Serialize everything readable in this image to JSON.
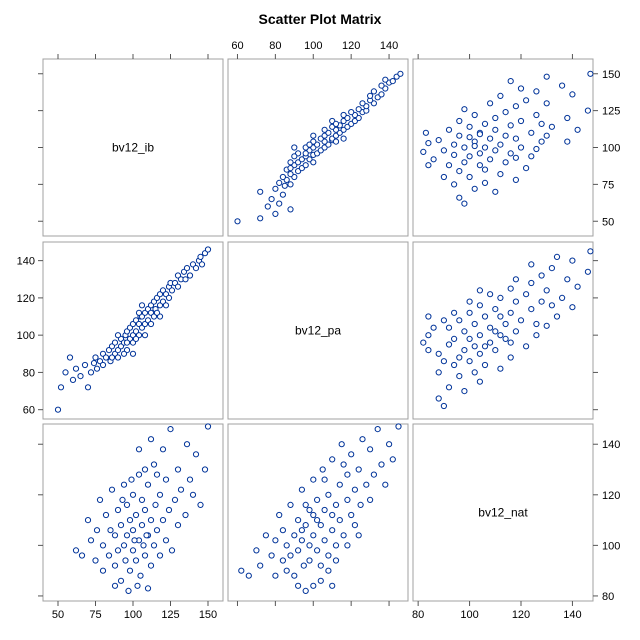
{
  "page": {
    "background": "#ffffff",
    "title": "Scatter Plot Matrix"
  },
  "colors": {
    "marker": "#003399",
    "frame": "#a0a0a0"
  },
  "chart_data": {
    "type": "scatter",
    "title": "Scatter Plot Matrix",
    "variables": [
      {
        "name": "bv12_ib",
        "range": [
          40,
          160
        ],
        "ticks": [
          50,
          75,
          100,
          125,
          150
        ]
      },
      {
        "name": "bv12_pa",
        "range": [
          55,
          150
        ],
        "ticks": [
          60,
          80,
          100,
          120,
          140
        ]
      },
      {
        "name": "bv12_nat",
        "range": [
          78,
          148
        ],
        "ticks": [
          80,
          100,
          120,
          140
        ]
      }
    ],
    "axis_label_sides": {
      "top": {
        "column": 1,
        "ticks": [
          60,
          80,
          100,
          120,
          140
        ]
      },
      "right_row0": {
        "row": 0,
        "ticks": [
          50,
          75,
          100,
          125,
          150
        ]
      },
      "left": {
        "row": 1,
        "ticks": [
          60,
          80,
          100,
          120,
          140
        ]
      },
      "right_row2": {
        "row": 2,
        "ticks": [
          80,
          100,
          120,
          140
        ]
      },
      "bottom_col0": {
        "column": 0,
        "ticks": [
          50,
          75,
          100,
          125,
          150
        ]
      },
      "bottom_col2": {
        "column": 2,
        "ticks": [
          80,
          100,
          120,
          140
        ]
      }
    },
    "marker": {
      "shape": "open-circle",
      "color": "#003399"
    },
    "series": [
      {
        "pair": [
          "bv12_ib",
          "bv12_pa"
        ],
        "points": [
          [
            50,
            60
          ],
          [
            52,
            72
          ],
          [
            55,
            80
          ],
          [
            58,
            88
          ],
          [
            60,
            76
          ],
          [
            62,
            82
          ],
          [
            65,
            78
          ],
          [
            68,
            84
          ],
          [
            70,
            72
          ],
          [
            72,
            80
          ],
          [
            74,
            85
          ],
          [
            75,
            88
          ],
          [
            76,
            82
          ],
          [
            78,
            86
          ],
          [
            80,
            90
          ],
          [
            80,
            84
          ],
          [
            82,
            88
          ],
          [
            84,
            92
          ],
          [
            85,
            86
          ],
          [
            86,
            94
          ],
          [
            88,
            90
          ],
          [
            88,
            96
          ],
          [
            90,
            92
          ],
          [
            90,
            88
          ],
          [
            92,
            98
          ],
          [
            92,
            94
          ],
          [
            94,
            96
          ],
          [
            95,
            100
          ],
          [
            96,
            92
          ],
          [
            96,
            102
          ],
          [
            98,
            98
          ],
          [
            98,
            104
          ],
          [
            100,
            100
          ],
          [
            100,
            96
          ],
          [
            100,
            106
          ],
          [
            102,
            102
          ],
          [
            102,
            108
          ],
          [
            104,
            100
          ],
          [
            104,
            106
          ],
          [
            105,
            110
          ],
          [
            106,
            104
          ],
          [
            106,
            110
          ],
          [
            108,
            106
          ],
          [
            108,
            112
          ],
          [
            110,
            108
          ],
          [
            110,
            114
          ],
          [
            112,
            112
          ],
          [
            112,
            116
          ],
          [
            114,
            110
          ],
          [
            114,
            118
          ],
          [
            115,
            114
          ],
          [
            116,
            120
          ],
          [
            118,
            116
          ],
          [
            118,
            122
          ],
          [
            120,
            118
          ],
          [
            120,
            124
          ],
          [
            122,
            122
          ],
          [
            124,
            120
          ],
          [
            124,
            126
          ],
          [
            125,
            128
          ],
          [
            126,
            124
          ],
          [
            128,
            128
          ],
          [
            130,
            126
          ],
          [
            130,
            132
          ],
          [
            132,
            130
          ],
          [
            134,
            134
          ],
          [
            135,
            130
          ],
          [
            136,
            136
          ],
          [
            138,
            132
          ],
          [
            140,
            138
          ],
          [
            142,
            136
          ],
          [
            144,
            140
          ],
          [
            145,
            142
          ],
          [
            146,
            138
          ],
          [
            148,
            144
          ],
          [
            150,
            146
          ],
          [
            152,
            150
          ],
          [
            108,
            100
          ],
          [
            96,
            96
          ],
          [
            104,
            112
          ],
          [
            100,
            90
          ],
          [
            90,
            100
          ],
          [
            112,
            106
          ],
          [
            86,
            88
          ],
          [
            118,
            110
          ],
          [
            122,
            116
          ],
          [
            94,
            90
          ],
          [
            102,
            98
          ],
          [
            106,
            116
          ],
          [
            116,
            112
          ]
        ]
      },
      {
        "pair": [
          "bv12_ib",
          "bv12_nat"
        ],
        "points": [
          [
            62,
            98
          ],
          [
            66,
            96
          ],
          [
            70,
            110
          ],
          [
            72,
            102
          ],
          [
            75,
            94
          ],
          [
            76,
            106
          ],
          [
            78,
            118
          ],
          [
            80,
            90
          ],
          [
            80,
            100
          ],
          [
            82,
            112
          ],
          [
            84,
            96
          ],
          [
            85,
            106
          ],
          [
            86,
            122
          ],
          [
            88,
            92
          ],
          [
            88,
            104
          ],
          [
            90,
            98
          ],
          [
            90,
            114
          ],
          [
            92,
            86
          ],
          [
            92,
            108
          ],
          [
            94,
            100
          ],
          [
            94,
            124
          ],
          [
            95,
            94
          ],
          [
            96,
            104
          ],
          [
            96,
            116
          ],
          [
            98,
            90
          ],
          [
            98,
            110
          ],
          [
            100,
            98
          ],
          [
            100,
            106
          ],
          [
            100,
            120
          ],
          [
            102,
            94
          ],
          [
            102,
            112
          ],
          [
            104,
            102
          ],
          [
            104,
            128
          ],
          [
            105,
            88
          ],
          [
            106,
            108
          ],
          [
            106,
            118
          ],
          [
            108,
            96
          ],
          [
            108,
            114
          ],
          [
            110,
            104
          ],
          [
            110,
            124
          ],
          [
            112,
            92
          ],
          [
            112,
            110
          ],
          [
            114,
            100
          ],
          [
            114,
            132
          ],
          [
            115,
            116
          ],
          [
            116,
            106
          ],
          [
            118,
            96
          ],
          [
            118,
            120
          ],
          [
            120,
            110
          ],
          [
            120,
            138
          ],
          [
            122,
            102
          ],
          [
            122,
            126
          ],
          [
            124,
            114
          ],
          [
            125,
            146
          ],
          [
            126,
            98
          ],
          [
            128,
            118
          ],
          [
            130,
            108
          ],
          [
            130,
            130
          ],
          [
            132,
            122
          ],
          [
            135,
            112
          ],
          [
            136,
            140
          ],
          [
            138,
            126
          ],
          [
            140,
            120
          ],
          [
            142,
            136
          ],
          [
            145,
            116
          ],
          [
            148,
            130
          ],
          [
            150,
            147
          ],
          [
            103,
            84
          ],
          [
            97,
            82
          ],
          [
            110,
            83
          ],
          [
            88,
            84
          ],
          [
            108,
            130
          ],
          [
            112,
            142
          ],
          [
            104,
            138
          ],
          [
            99,
            126
          ],
          [
            116,
            128
          ],
          [
            93,
            118
          ],
          [
            107,
            100
          ],
          [
            101,
            102
          ],
          [
            109,
            104
          ]
        ]
      },
      {
        "pair": [
          "bv12_pa",
          "bv12_nat"
        ],
        "points": [
          [
            62,
            90
          ],
          [
            66,
            88
          ],
          [
            70,
            98
          ],
          [
            72,
            92
          ],
          [
            75,
            104
          ],
          [
            78,
            96
          ],
          [
            80,
            88
          ],
          [
            80,
            102
          ],
          [
            82,
            112
          ],
          [
            84,
            94
          ],
          [
            84,
            106
          ],
          [
            86,
            90
          ],
          [
            86,
            100
          ],
          [
            88,
            116
          ],
          [
            88,
            96
          ],
          [
            90,
            104
          ],
          [
            90,
            88
          ],
          [
            92,
            110
          ],
          [
            92,
            98
          ],
          [
            94,
            122
          ],
          [
            94,
            102
          ],
          [
            95,
            92
          ],
          [
            96,
            108
          ],
          [
            96,
            116
          ],
          [
            98,
            100
          ],
          [
            98,
            94
          ],
          [
            100,
            112
          ],
          [
            100,
            104
          ],
          [
            100,
            126
          ],
          [
            102,
            98
          ],
          [
            102,
            118
          ],
          [
            104,
            108
          ],
          [
            104,
            92
          ],
          [
            105,
            130
          ],
          [
            106,
            102
          ],
          [
            106,
            114
          ],
          [
            108,
            96
          ],
          [
            108,
            120
          ],
          [
            110,
            106
          ],
          [
            110,
            134
          ],
          [
            112,
            100
          ],
          [
            112,
            116
          ],
          [
            114,
            110
          ],
          [
            114,
            124
          ],
          [
            115,
            140
          ],
          [
            116,
            104
          ],
          [
            118,
            118
          ],
          [
            118,
            128
          ],
          [
            120,
            112
          ],
          [
            120,
            136
          ],
          [
            122,
            108
          ],
          [
            122,
            122
          ],
          [
            124,
            130
          ],
          [
            125,
            116
          ],
          [
            126,
            142
          ],
          [
            128,
            124
          ],
          [
            130,
            118
          ],
          [
            130,
            138
          ],
          [
            132,
            128
          ],
          [
            134,
            146
          ],
          [
            136,
            132
          ],
          [
            138,
            124
          ],
          [
            140,
            140
          ],
          [
            142,
            134
          ],
          [
            145,
            147
          ],
          [
            104,
            86
          ],
          [
            100,
            84
          ],
          [
            96,
            82
          ],
          [
            110,
            84
          ],
          [
            92,
            84
          ],
          [
            108,
            90
          ],
          [
            112,
            94
          ],
          [
            118,
            100
          ],
          [
            124,
            104
          ],
          [
            106,
            126
          ],
          [
            98,
            114
          ],
          [
            116,
            132
          ],
          [
            102,
            110
          ],
          [
            94,
            106
          ],
          [
            110,
            112
          ]
        ]
      }
    ]
  }
}
